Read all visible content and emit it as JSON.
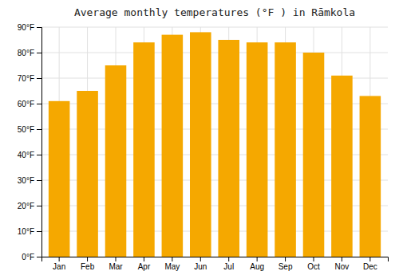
{
  "chart_data": {
    "type": "bar",
    "title": "Average monthly temperatures (°F ) in Rāmkola",
    "categories": [
      "Jan",
      "Feb",
      "Mar",
      "Apr",
      "May",
      "Jun",
      "Jul",
      "Aug",
      "Sep",
      "Oct",
      "Nov",
      "Dec"
    ],
    "values": [
      61,
      65,
      75,
      84,
      87,
      88,
      85,
      84,
      84,
      80,
      71,
      63
    ],
    "color": "#F5A800",
    "ylim": [
      0,
      90
    ],
    "yticks": [
      {
        "value": 0,
        "label": "0°F"
      },
      {
        "value": 10,
        "label": "10°F"
      },
      {
        "value": 20,
        "label": "20°F"
      },
      {
        "value": 30,
        "label": "30°F"
      },
      {
        "value": 40,
        "label": "40°F"
      },
      {
        "value": 50,
        "label": "50°F"
      },
      {
        "value": 60,
        "label": "60°F"
      },
      {
        "value": 70,
        "label": "70°F"
      },
      {
        "value": 80,
        "label": "80°F"
      },
      {
        "value": 90,
        "label": "90°F"
      }
    ],
    "grid": true
  }
}
